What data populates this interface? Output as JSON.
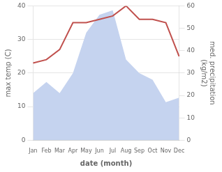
{
  "chart_data": {
    "type": "line",
    "categories": [
      "Jan",
      "Feb",
      "Mar",
      "Apr",
      "May",
      "Jun",
      "Jul",
      "Aug",
      "Sep",
      "Oct",
      "Nov",
      "Dec"
    ],
    "series": [
      {
        "type": "area",
        "color": "#c5d3ef",
        "axis": "y2",
        "values": [
          21,
          26,
          21,
          30,
          48,
          56,
          58,
          36,
          30,
          27,
          17,
          19
        ]
      },
      {
        "type": "line",
        "color": "#c0504d",
        "values": [
          23,
          24,
          27,
          35,
          35,
          36,
          37,
          40,
          36,
          36,
          35,
          25
        ]
      }
    ],
    "xlabel": "date (month)",
    "ylabel": "max temp (C)",
    "y2label": "med. precipitation\n(kg/m2)",
    "ylim": [
      0,
      40
    ],
    "yticks": [
      0,
      10,
      20,
      30,
      40
    ],
    "y2lim": [
      0,
      60
    ],
    "y2ticks": [
      0,
      10,
      20,
      30,
      40,
      50,
      60
    ],
    "grid": true
  }
}
